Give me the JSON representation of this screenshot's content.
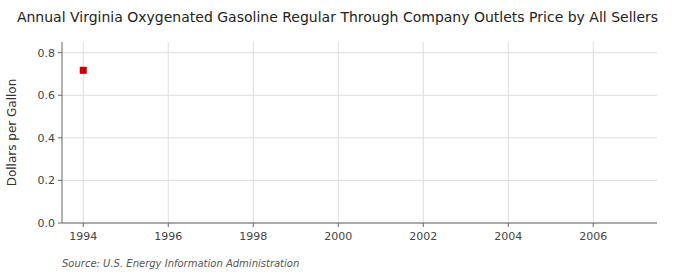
{
  "chart_data": {
    "type": "scatter",
    "title": "Annual Virginia Oxygenated Gasoline Regular Through Company Outlets Price by All Sellers",
    "y_label": "Dollars per Gallon",
    "source": "Source: U.S. Energy Information Administration",
    "x": [
      1994
    ],
    "values": [
      0.717
    ],
    "color": "#cc0000",
    "marker": "square",
    "xlim": [
      1993.5,
      2007.5
    ],
    "ylim": [
      0.0,
      0.85
    ],
    "xticks": [
      1994,
      1996,
      1998,
      2000,
      2002,
      2004,
      2006
    ],
    "yticks": [
      {
        "value": 0.0,
        "label": "0.0"
      },
      0.2,
      0.4,
      0.6,
      0.8
    ],
    "grid": true
  }
}
